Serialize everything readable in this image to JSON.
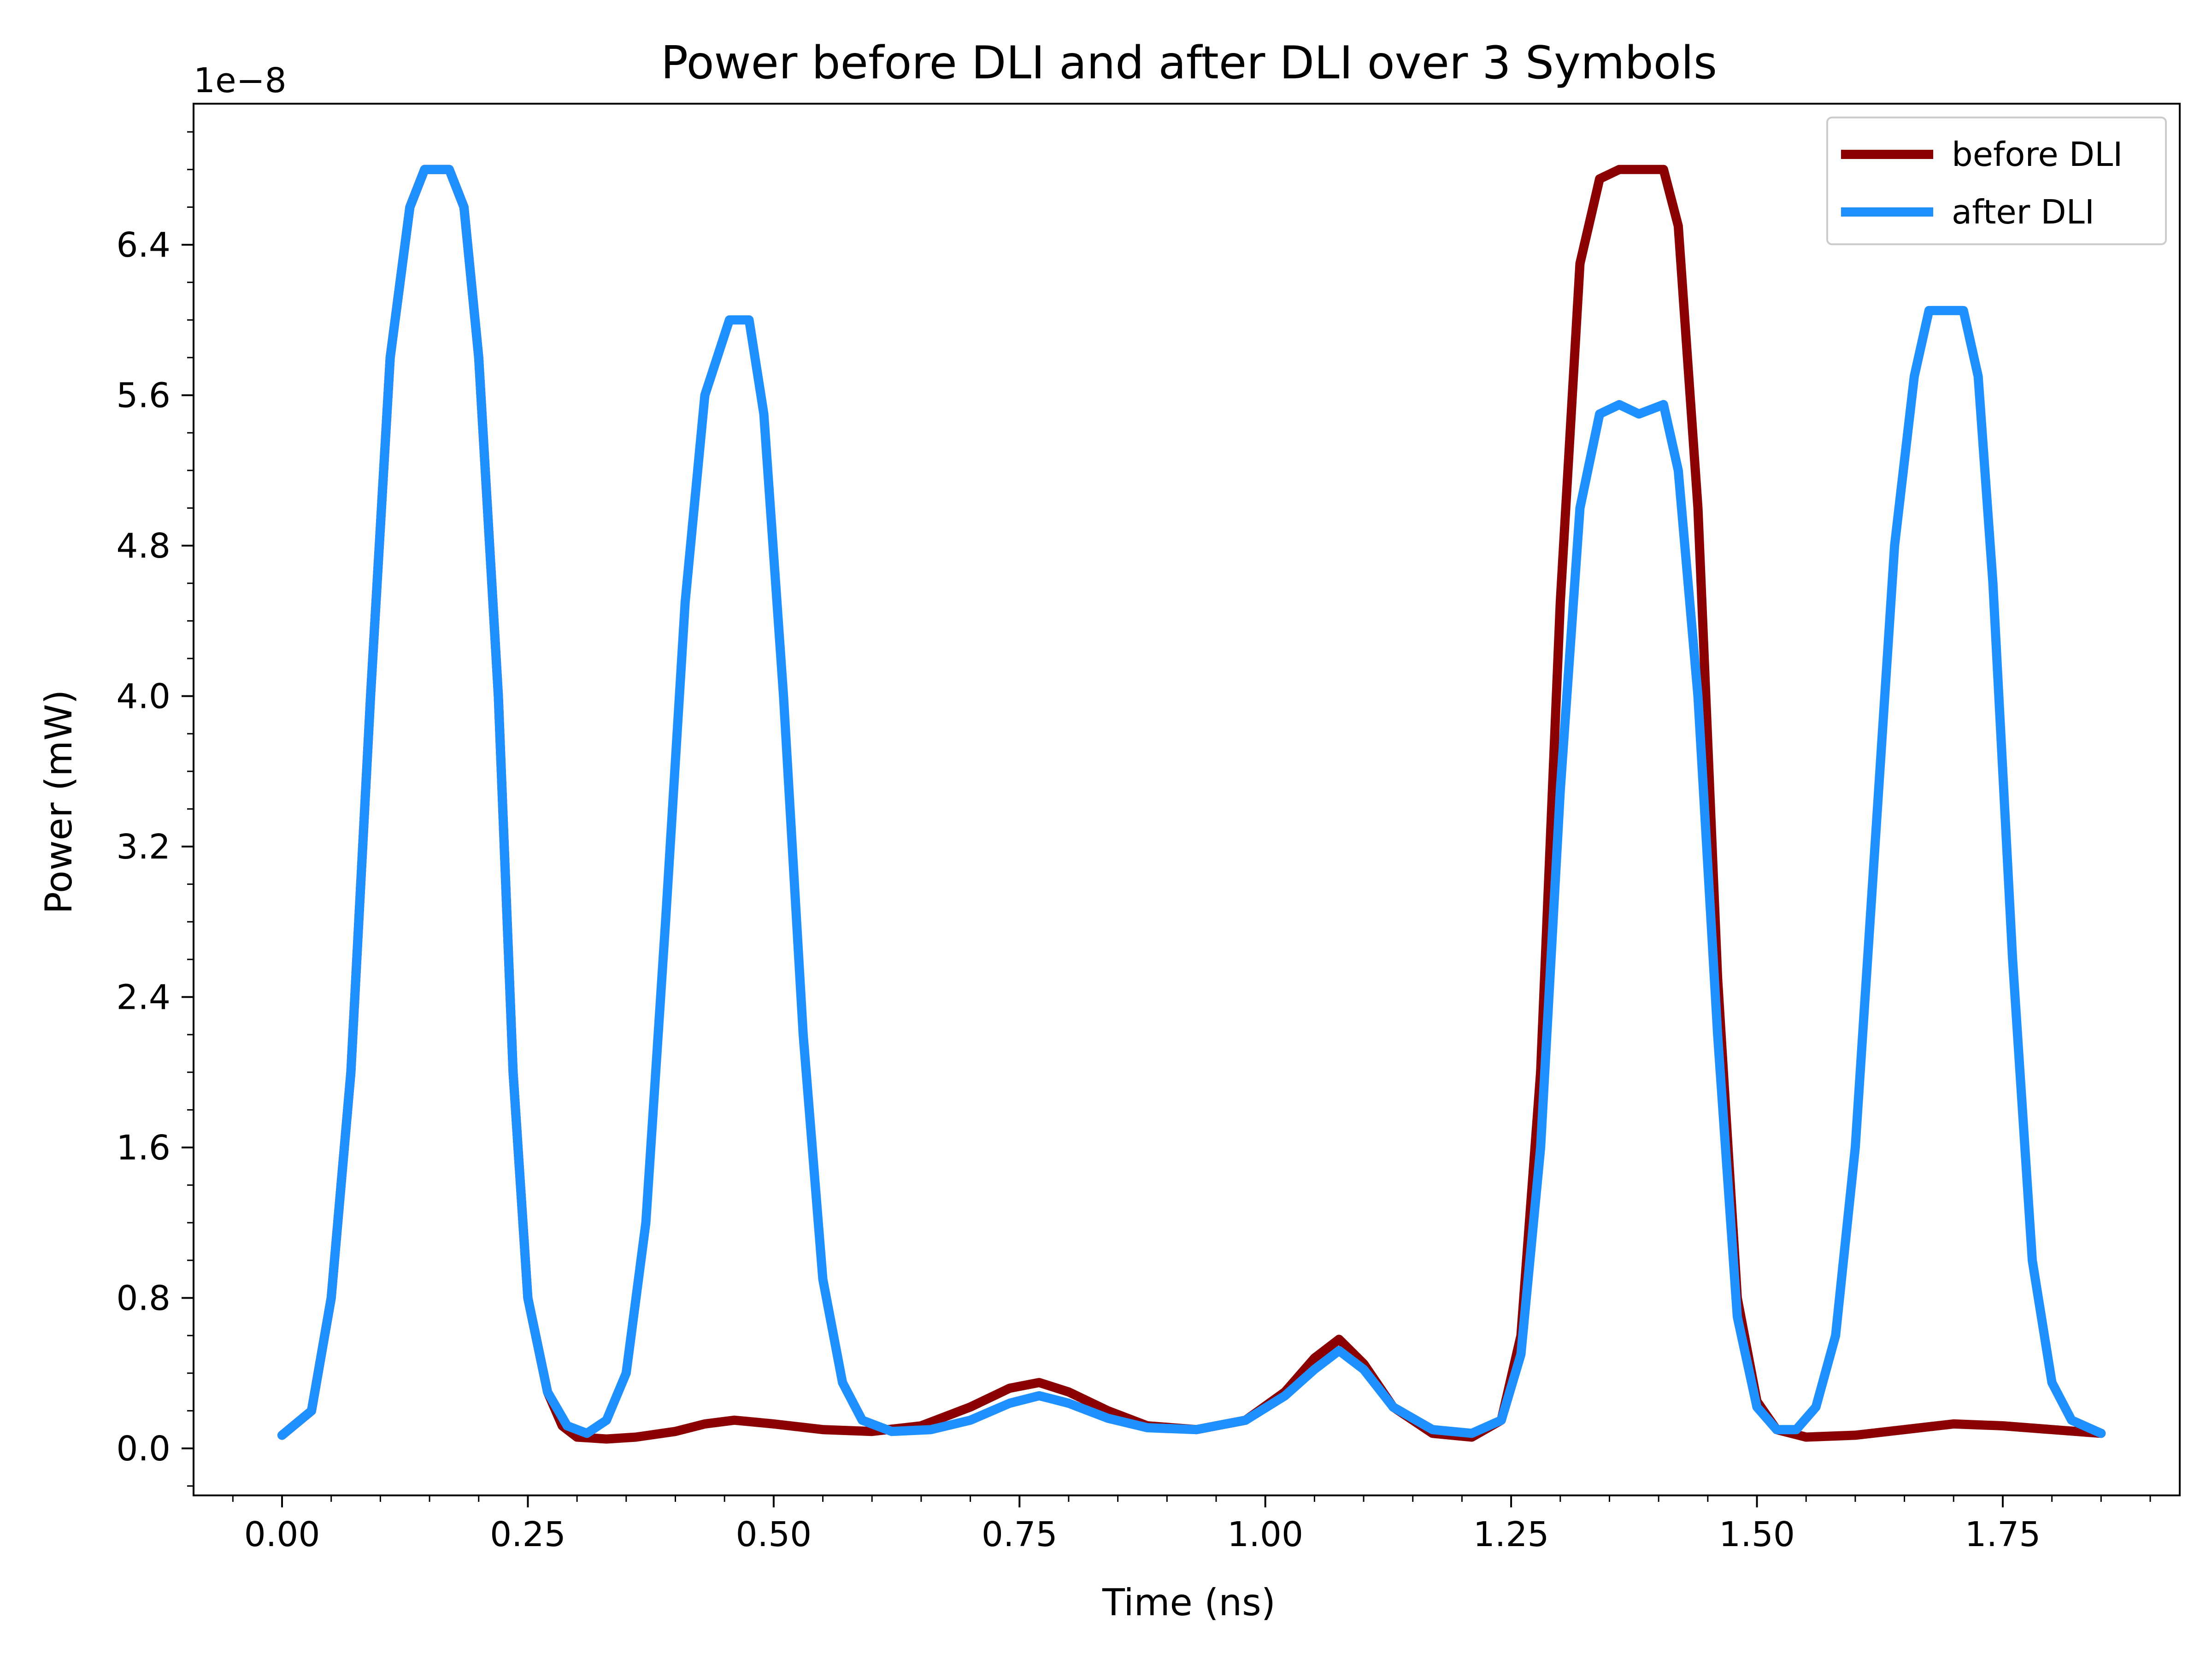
{
  "chart_data": {
    "type": "line",
    "title": "Power before DLI and after DLI over 3 Symbols",
    "xlabel": "Time (ns)",
    "ylabel": "Power (mW)",
    "y_offset_label": "1e−8",
    "xlim": [
      -0.09,
      1.93
    ],
    "ylim": [
      -0.25,
      7.15
    ],
    "x_ticks": [
      0.0,
      0.25,
      0.5,
      0.75,
      1.0,
      1.25,
      1.5,
      1.75
    ],
    "x_tick_labels": [
      "0.00",
      "0.25",
      "0.50",
      "0.75",
      "1.00",
      "1.25",
      "1.50",
      "1.75"
    ],
    "y_ticks": [
      0.0,
      0.8,
      1.6,
      2.4,
      3.2,
      4.0,
      4.8,
      5.6,
      6.4
    ],
    "y_tick_labels": [
      "0.0",
      "0.8",
      "1.6",
      "2.4",
      "3.2",
      "4.0",
      "4.8",
      "5.6",
      "6.4"
    ],
    "y_minor_step": 0.2,
    "x_minor_step": 0.05,
    "grid": false,
    "legend_position": "upper-right",
    "series": [
      {
        "name": "before DLI",
        "color": "#8b0000",
        "x": [
          0.0,
          0.03,
          0.05,
          0.07,
          0.09,
          0.11,
          0.13,
          0.145,
          0.17,
          0.185,
          0.2,
          0.22,
          0.235,
          0.25,
          0.27,
          0.285,
          0.3,
          0.33,
          0.36,
          0.4,
          0.43,
          0.46,
          0.5,
          0.55,
          0.6,
          0.65,
          0.7,
          0.74,
          0.77,
          0.8,
          0.84,
          0.88,
          0.93,
          0.98,
          1.02,
          1.05,
          1.075,
          1.1,
          1.13,
          1.17,
          1.21,
          1.24,
          1.26,
          1.28,
          1.3,
          1.32,
          1.34,
          1.36,
          1.405,
          1.42,
          1.44,
          1.46,
          1.48,
          1.5,
          1.52,
          1.55,
          1.6,
          1.65,
          1.7,
          1.75,
          1.8,
          1.85
        ],
        "y": [
          0.07,
          0.2,
          0.8,
          2.0,
          4.0,
          5.8,
          6.6,
          6.8,
          6.8,
          6.6,
          5.8,
          4.0,
          2.0,
          0.8,
          0.3,
          0.12,
          0.06,
          0.05,
          0.06,
          0.09,
          0.13,
          0.15,
          0.13,
          0.1,
          0.09,
          0.12,
          0.22,
          0.32,
          0.35,
          0.3,
          0.2,
          0.12,
          0.1,
          0.15,
          0.3,
          0.48,
          0.58,
          0.45,
          0.22,
          0.08,
          0.06,
          0.15,
          0.6,
          2.0,
          4.5,
          6.3,
          6.75,
          6.8,
          6.8,
          6.5,
          5.0,
          2.5,
          0.8,
          0.25,
          0.1,
          0.06,
          0.07,
          0.1,
          0.13,
          0.12,
          0.1,
          0.08
        ]
      },
      {
        "name": "after DLI",
        "color": "#1e90ff",
        "x": [
          0.0,
          0.03,
          0.05,
          0.07,
          0.09,
          0.11,
          0.13,
          0.145,
          0.17,
          0.185,
          0.2,
          0.22,
          0.235,
          0.25,
          0.27,
          0.29,
          0.31,
          0.33,
          0.35,
          0.37,
          0.39,
          0.41,
          0.43,
          0.455,
          0.475,
          0.49,
          0.51,
          0.53,
          0.55,
          0.57,
          0.59,
          0.62,
          0.66,
          0.7,
          0.74,
          0.77,
          0.8,
          0.84,
          0.88,
          0.93,
          0.98,
          1.02,
          1.05,
          1.075,
          1.1,
          1.13,
          1.17,
          1.21,
          1.24,
          1.26,
          1.28,
          1.3,
          1.32,
          1.34,
          1.36,
          1.38,
          1.405,
          1.42,
          1.44,
          1.46,
          1.48,
          1.5,
          1.52,
          1.54,
          1.56,
          1.58,
          1.6,
          1.62,
          1.64,
          1.66,
          1.675,
          1.71,
          1.725,
          1.74,
          1.76,
          1.78,
          1.8,
          1.82,
          1.85
        ],
        "y": [
          0.07,
          0.2,
          0.8,
          2.0,
          4.0,
          5.8,
          6.6,
          6.8,
          6.8,
          6.6,
          5.8,
          4.0,
          2.0,
          0.8,
          0.3,
          0.12,
          0.08,
          0.15,
          0.4,
          1.2,
          2.8,
          4.5,
          5.6,
          6.0,
          6.0,
          5.5,
          4.0,
          2.2,
          0.9,
          0.35,
          0.15,
          0.09,
          0.1,
          0.15,
          0.24,
          0.28,
          0.24,
          0.16,
          0.11,
          0.1,
          0.15,
          0.28,
          0.42,
          0.52,
          0.42,
          0.22,
          0.1,
          0.08,
          0.15,
          0.5,
          1.6,
          3.5,
          5.0,
          5.5,
          5.55,
          5.5,
          5.55,
          5.2,
          4.0,
          2.2,
          0.7,
          0.22,
          0.1,
          0.1,
          0.22,
          0.6,
          1.6,
          3.2,
          4.8,
          5.7,
          6.05,
          6.05,
          5.7,
          4.6,
          2.6,
          1.0,
          0.35,
          0.15,
          0.08
        ]
      }
    ]
  }
}
